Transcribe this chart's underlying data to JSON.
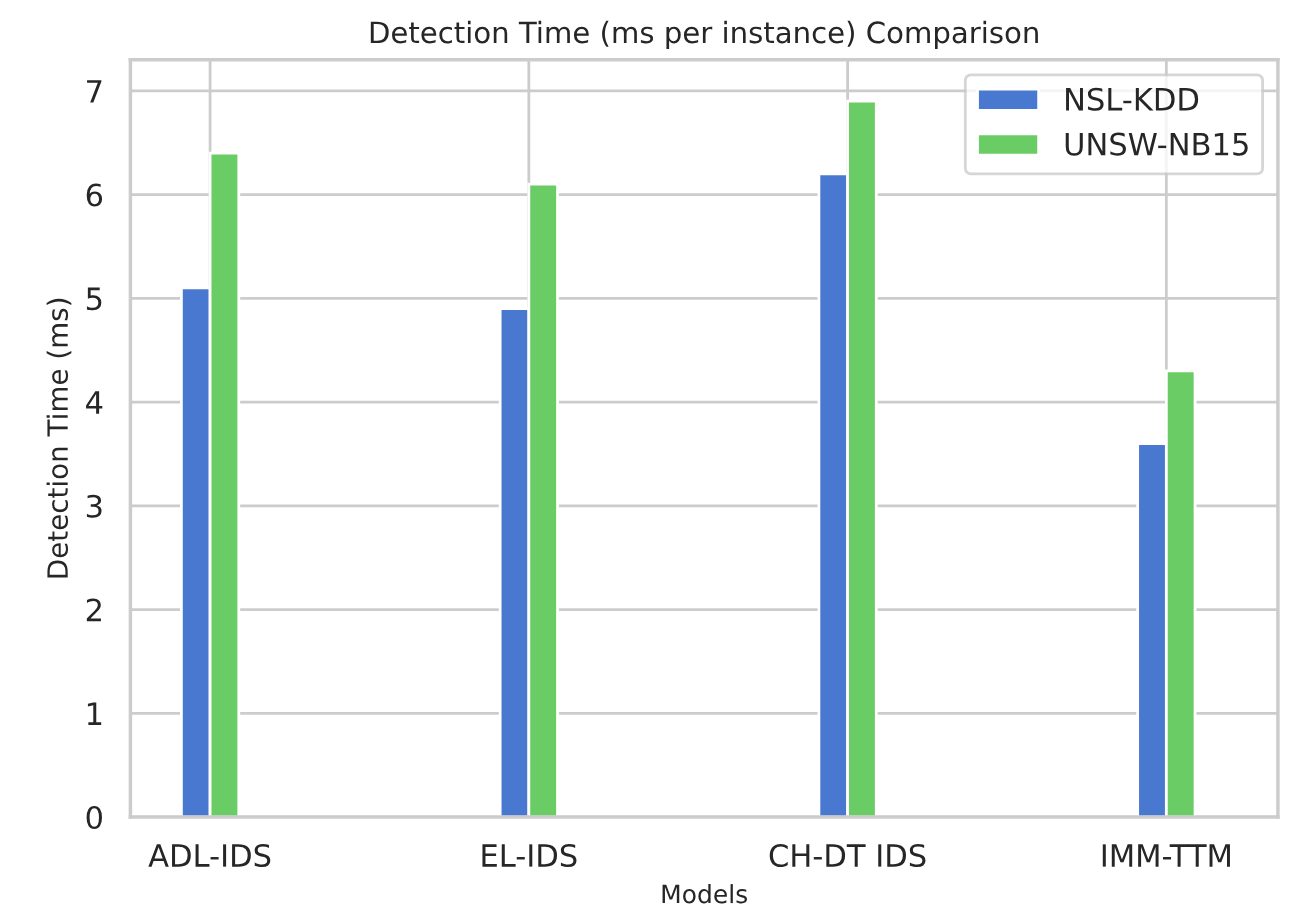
{
  "chart_data": {
    "type": "bar",
    "title": "Detection Time (ms per instance) Comparison",
    "xlabel": "Models",
    "ylabel": "Detection Time (ms)",
    "categories": [
      "ADL-IDS",
      "EL-IDS",
      "CH-DT IDS",
      "IMM-TTM"
    ],
    "series": [
      {
        "name": "NSL-KDD",
        "color": "#4878d0",
        "values": [
          5.1,
          4.9,
          6.2,
          3.6
        ]
      },
      {
        "name": "UNSW-NB15",
        "color": "#6acc64",
        "values": [
          6.4,
          6.1,
          6.9,
          4.3
        ]
      }
    ],
    "ylim": [
      0,
      7.3
    ],
    "yticks": [
      0,
      1,
      2,
      3,
      4,
      5,
      6,
      7
    ],
    "grid": true,
    "legend": "top right"
  }
}
